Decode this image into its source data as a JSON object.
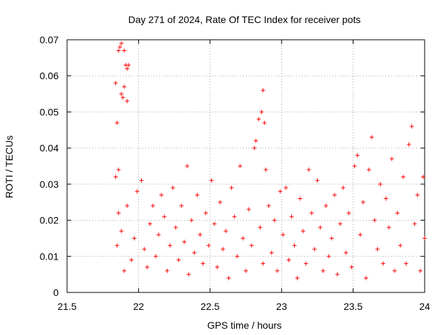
{
  "chart_data": {
    "type": "scatter",
    "title": "Day 271 of 2024, Rate Of TEC Index for receiver pots",
    "xlabel": "GPS time / hours",
    "ylabel": "ROTI / TECUs",
    "xlim": [
      21.5,
      24
    ],
    "ylim": [
      0,
      0.07
    ],
    "xticks": [
      21.5,
      22,
      22.5,
      23,
      23.5,
      24
    ],
    "xtick_labels": [
      "21.5",
      "22",
      "22.5",
      "23",
      "23.5",
      "24"
    ],
    "yticks": [
      0,
      0.01,
      0.02,
      0.03,
      0.04,
      0.05,
      0.06,
      0.07
    ],
    "ytick_labels": [
      "0",
      "0.01",
      "0.02",
      "0.03",
      "0.04",
      "0.05",
      "0.06",
      "0.07"
    ],
    "grid": true,
    "marker": "+",
    "color": "#ff0000",
    "series": [
      {
        "name": "pots",
        "points": [
          [
            21.84,
            0.058
          ],
          [
            21.85,
            0.047
          ],
          [
            21.86,
            0.067
          ],
          [
            21.87,
            0.068
          ],
          [
            21.88,
            0.069
          ],
          [
            21.88,
            0.055
          ],
          [
            21.89,
            0.054
          ],
          [
            21.9,
            0.067
          ],
          [
            21.9,
            0.057
          ],
          [
            21.91,
            0.063
          ],
          [
            21.92,
            0.062
          ],
          [
            21.92,
            0.053
          ],
          [
            21.93,
            0.063
          ],
          [
            21.84,
            0.032
          ],
          [
            21.86,
            0.034
          ],
          [
            21.85,
            0.013
          ],
          [
            21.86,
            0.022
          ],
          [
            21.88,
            0.017
          ],
          [
            21.9,
            0.006
          ],
          [
            21.92,
            0.024
          ],
          [
            21.95,
            0.009
          ],
          [
            21.97,
            0.015
          ],
          [
            21.99,
            0.028
          ],
          [
            22.02,
            0.031
          ],
          [
            22.04,
            0.012
          ],
          [
            22.06,
            0.007
          ],
          [
            22.08,
            0.019
          ],
          [
            22.1,
            0.024
          ],
          [
            22.12,
            0.01
          ],
          [
            22.14,
            0.016
          ],
          [
            22.16,
            0.027
          ],
          [
            22.18,
            0.021
          ],
          [
            22.2,
            0.006
          ],
          [
            22.22,
            0.013
          ],
          [
            22.24,
            0.029
          ],
          [
            22.26,
            0.018
          ],
          [
            22.28,
            0.009
          ],
          [
            22.3,
            0.024
          ],
          [
            22.32,
            0.014
          ],
          [
            22.34,
            0.035
          ],
          [
            22.35,
            0.005
          ],
          [
            22.37,
            0.02
          ],
          [
            22.39,
            0.011
          ],
          [
            22.41,
            0.027
          ],
          [
            22.43,
            0.016
          ],
          [
            22.45,
            0.008
          ],
          [
            22.47,
            0.022
          ],
          [
            22.49,
            0.013
          ],
          [
            22.51,
            0.031
          ],
          [
            22.53,
            0.019
          ],
          [
            22.55,
            0.007
          ],
          [
            22.57,
            0.025
          ],
          [
            22.59,
            0.012
          ],
          [
            22.61,
            0.017
          ],
          [
            22.63,
            0.004
          ],
          [
            22.65,
            0.029
          ],
          [
            22.67,
            0.021
          ],
          [
            22.69,
            0.01
          ],
          [
            22.71,
            0.035
          ],
          [
            22.73,
            0.015
          ],
          [
            22.75,
            0.006
          ],
          [
            22.77,
            0.023
          ],
          [
            22.79,
            0.013
          ],
          [
            22.81,
            0.04
          ],
          [
            22.82,
            0.042
          ],
          [
            22.84,
            0.048
          ],
          [
            22.86,
            0.05
          ],
          [
            22.87,
            0.056
          ],
          [
            22.88,
            0.047
          ],
          [
            22.85,
            0.018
          ],
          [
            22.87,
            0.008
          ],
          [
            22.89,
            0.034
          ],
          [
            22.91,
            0.024
          ],
          [
            22.93,
            0.011
          ],
          [
            22.95,
            0.02
          ],
          [
            22.97,
            0.006
          ],
          [
            22.99,
            0.028
          ],
          [
            23.01,
            0.016
          ],
          [
            23.03,
            0.029
          ],
          [
            23.05,
            0.009
          ],
          [
            23.07,
            0.021
          ],
          [
            23.09,
            0.013
          ],
          [
            23.11,
            0.004
          ],
          [
            23.13,
            0.026
          ],
          [
            23.15,
            0.017
          ],
          [
            23.17,
            0.008
          ],
          [
            23.19,
            0.034
          ],
          [
            23.21,
            0.022
          ],
          [
            23.23,
            0.012
          ],
          [
            23.25,
            0.031
          ],
          [
            23.27,
            0.018
          ],
          [
            23.29,
            0.006
          ],
          [
            23.31,
            0.024
          ],
          [
            23.33,
            0.01
          ],
          [
            23.35,
            0.015
          ],
          [
            23.37,
            0.027
          ],
          [
            23.39,
            0.005
          ],
          [
            23.41,
            0.019
          ],
          [
            23.43,
            0.029
          ],
          [
            23.45,
            0.011
          ],
          [
            23.47,
            0.022
          ],
          [
            23.49,
            0.007
          ],
          [
            23.51,
            0.035
          ],
          [
            23.53,
            0.038
          ],
          [
            23.55,
            0.016
          ],
          [
            23.57,
            0.025
          ],
          [
            23.59,
            0.004
          ],
          [
            23.61,
            0.034
          ],
          [
            23.63,
            0.043
          ],
          [
            23.65,
            0.02
          ],
          [
            23.67,
            0.012
          ],
          [
            23.69,
            0.03
          ],
          [
            23.71,
            0.008
          ],
          [
            23.73,
            0.026
          ],
          [
            23.75,
            0.018
          ],
          [
            23.77,
            0.037
          ],
          [
            23.79,
            0.006
          ],
          [
            23.81,
            0.022
          ],
          [
            23.83,
            0.013
          ],
          [
            23.85,
            0.032
          ],
          [
            23.87,
            0.008
          ],
          [
            23.89,
            0.041
          ],
          [
            23.91,
            0.046
          ],
          [
            23.93,
            0.019
          ],
          [
            23.95,
            0.027
          ],
          [
            23.97,
            0.006
          ],
          [
            23.99,
            0.032
          ],
          [
            24.0,
            0.015
          ]
        ]
      }
    ]
  }
}
